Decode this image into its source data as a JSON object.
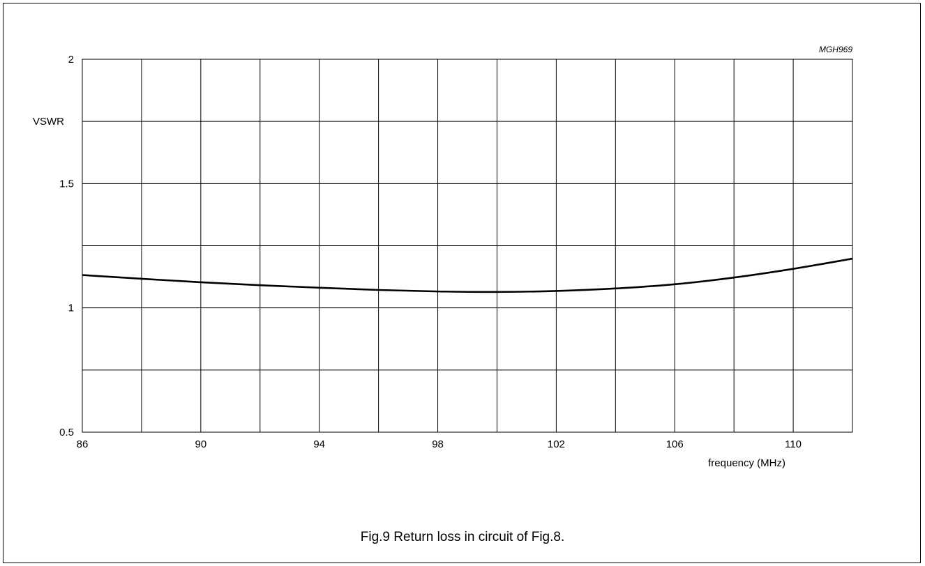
{
  "figure": {
    "code": "MGH969",
    "caption": "Fig.9  Return loss in circuit of Fig.8."
  },
  "chart_data": {
    "type": "line",
    "title": "",
    "xlabel": "frequency (MHz)",
    "ylabel": "VSWR",
    "xlim": [
      86,
      112
    ],
    "ylim": [
      0.5,
      2
    ],
    "x_ticks": [
      86,
      90,
      94,
      98,
      102,
      106,
      110
    ],
    "x_tick_labels": [
      "86",
      "90",
      "94",
      "98",
      "102",
      "106",
      "110"
    ],
    "y_ticks": [
      0.5,
      1,
      1.5,
      2
    ],
    "y_tick_labels": [
      "0.5",
      "1",
      "1.5",
      "2"
    ],
    "x_grid_step": 2,
    "y_grid_step": 0.25,
    "grid": true,
    "colors": {
      "line": "#000000",
      "grid": "#000000"
    },
    "series": [
      {
        "x": [
          86,
          88,
          90,
          92,
          94,
          96,
          98,
          100,
          102,
          104,
          106,
          108,
          110,
          112
        ],
        "values": [
          1.132,
          1.117,
          1.103,
          1.091,
          1.081,
          1.072,
          1.066,
          1.064,
          1.068,
          1.078,
          1.095,
          1.122,
          1.157,
          1.198
        ]
      }
    ]
  }
}
